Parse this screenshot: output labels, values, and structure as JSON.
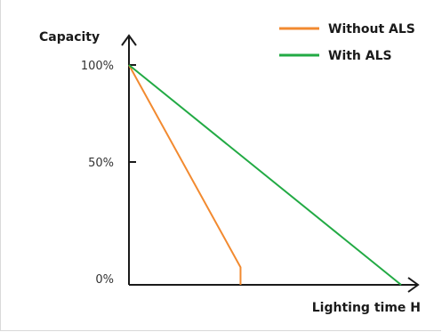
{
  "chart_data": {
    "type": "line",
    "title": "",
    "xlabel": "Lighting time H",
    "ylabel": "Capacity",
    "y_ticks": [
      "100%",
      "50%",
      "0%"
    ],
    "ylim": [
      0,
      100
    ],
    "xlim": [
      0,
      100
    ],
    "grid": false,
    "legend_position": "top-right",
    "series": [
      {
        "name": "Without ALS",
        "color": "#f28a30",
        "points": [
          {
            "x": 0,
            "y": 100
          },
          {
            "x": 41,
            "y": 8
          },
          {
            "x": 41,
            "y": 0
          }
        ]
      },
      {
        "name": "With ALS",
        "color": "#22aa44",
        "points": [
          {
            "x": 0,
            "y": 100
          },
          {
            "x": 100,
            "y": 0
          }
        ]
      }
    ]
  }
}
